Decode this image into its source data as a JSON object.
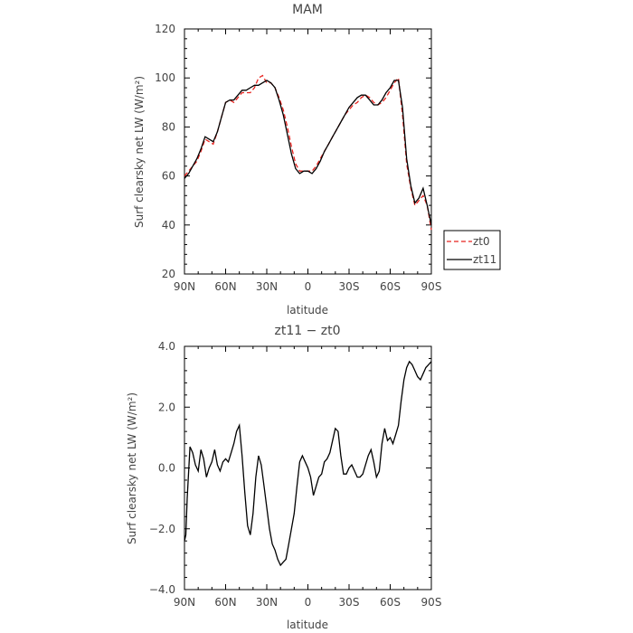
{
  "chart_data": [
    {
      "type": "line",
      "title": "MAM",
      "xlabel": "latitude",
      "ylabel": "Surf clearsky net LW (W/m²)",
      "xlim": [
        90,
        -90
      ],
      "ylim": [
        20,
        120
      ],
      "x_ticks": [
        {
          "value": 90,
          "label": "90N"
        },
        {
          "value": 60,
          "label": "60N"
        },
        {
          "value": 30,
          "label": "30N"
        },
        {
          "value": 0,
          "label": "0"
        },
        {
          "value": -30,
          "label": "30S"
        },
        {
          "value": -60,
          "label": "60S"
        },
        {
          "value": -90,
          "label": "90S"
        }
      ],
      "y_ticks": [
        {
          "value": 20,
          "label": "20"
        },
        {
          "value": 40,
          "label": "40"
        },
        {
          "value": 60,
          "label": "60"
        },
        {
          "value": 80,
          "label": "80"
        },
        {
          "value": 100,
          "label": "100"
        },
        {
          "value": 120,
          "label": "120"
        }
      ],
      "legend_position": "right",
      "series": [
        {
          "name": "zt0",
          "color": "#e8231f",
          "dash": "dashed",
          "x": [
            90,
            87,
            84,
            81,
            78,
            75,
            72,
            69,
            66,
            63,
            60,
            57,
            54,
            51,
            48,
            45,
            42,
            39,
            36,
            33,
            30,
            27,
            24,
            21,
            18,
            15,
            12,
            9,
            6,
            3,
            0,
            -3,
            -6,
            -9,
            -12,
            -15,
            -18,
            -21,
            -24,
            -27,
            -30,
            -33,
            -36,
            -39,
            -42,
            -45,
            -48,
            -51,
            -54,
            -57,
            -60,
            -63,
            -66,
            -69,
            -72,
            -75,
            -78,
            -81,
            -84,
            -87,
            -90
          ],
          "y": [
            60,
            62,
            64,
            66,
            70,
            75,
            74,
            73,
            78,
            84,
            90,
            91,
            90,
            92,
            94,
            94,
            94,
            96,
            100,
            101,
            98,
            98,
            96,
            92,
            87,
            80,
            72,
            65,
            62,
            62,
            62,
            62,
            64,
            67,
            70,
            73,
            76,
            79,
            82,
            85,
            87,
            89,
            90,
            92,
            93,
            92,
            90,
            89,
            90,
            92,
            95,
            98,
            100,
            85,
            65,
            55,
            48,
            50,
            52,
            48,
            38
          ]
        },
        {
          "name": "zt11",
          "color": "#000000",
          "dash": "solid",
          "x": [
            90,
            87,
            84,
            81,
            78,
            75,
            72,
            69,
            66,
            63,
            60,
            57,
            54,
            51,
            48,
            45,
            42,
            39,
            36,
            33,
            30,
            27,
            24,
            21,
            18,
            15,
            12,
            9,
            6,
            3,
            0,
            -3,
            -6,
            -9,
            -12,
            -15,
            -18,
            -21,
            -24,
            -27,
            -30,
            -33,
            -36,
            -39,
            -42,
            -45,
            -48,
            -51,
            -54,
            -57,
            -60,
            -63,
            -66,
            -69,
            -72,
            -75,
            -78,
            -81,
            -84,
            -87,
            -90
          ],
          "y": [
            59,
            61,
            64,
            67,
            71,
            76,
            75,
            74,
            78,
            84,
            90,
            91,
            91,
            93,
            95,
            95,
            96,
            97,
            97,
            98,
            99,
            98,
            96,
            91,
            85,
            77,
            69,
            63,
            61,
            62,
            62,
            61,
            63,
            66,
            70,
            73,
            76,
            79,
            82,
            85,
            88,
            90,
            92,
            93,
            93,
            91,
            89,
            89,
            91,
            94,
            96,
            99,
            99,
            88,
            67,
            56,
            49,
            51,
            55,
            48,
            40
          ]
        }
      ]
    },
    {
      "type": "line",
      "title": "zt11 − zt0",
      "xlabel": "latitude",
      "ylabel": "Surf clearsky net LW (W/m²)",
      "xlim": [
        90,
        -90
      ],
      "ylim": [
        -4,
        4
      ],
      "x_ticks": [
        {
          "value": 90,
          "label": "90N"
        },
        {
          "value": 60,
          "label": "60N"
        },
        {
          "value": 30,
          "label": "30N"
        },
        {
          "value": 0,
          "label": "0"
        },
        {
          "value": -30,
          "label": "30S"
        },
        {
          "value": -60,
          "label": "60S"
        },
        {
          "value": -90,
          "label": "90S"
        }
      ],
      "y_ticks": [
        {
          "value": -4,
          "label": "−4.0"
        },
        {
          "value": -2,
          "label": "−2.0"
        },
        {
          "value": 0,
          "label": "0.0"
        },
        {
          "value": 2,
          "label": "2.0"
        },
        {
          "value": 4,
          "label": "4.0"
        }
      ],
      "series": [
        {
          "name": "",
          "color": "#000000",
          "dash": "solid",
          "x": [
            90,
            89,
            88,
            86,
            84,
            82,
            80,
            78,
            76,
            74,
            72,
            70,
            68,
            66,
            64,
            62,
            60,
            58,
            56,
            54,
            52,
            50,
            48,
            46,
            44,
            42,
            40,
            38,
            36,
            34,
            32,
            30,
            28,
            26,
            24,
            22,
            20,
            18,
            16,
            14,
            12,
            10,
            8,
            6,
            4,
            2,
            0,
            -2,
            -4,
            -6,
            -8,
            -10,
            -12,
            -14,
            -16,
            -18,
            -20,
            -22,
            -24,
            -26,
            -28,
            -30,
            -32,
            -34,
            -36,
            -38,
            -40,
            -42,
            -44,
            -46,
            -48,
            -50,
            -52,
            -54,
            -56,
            -58,
            -60,
            -62,
            -64,
            -66,
            -68,
            -70,
            -72,
            -74,
            -76,
            -78,
            -80,
            -82,
            -84,
            -86,
            -88,
            -90
          ],
          "y": [
            -2.4,
            -2.2,
            -1.0,
            0.7,
            0.5,
            0.1,
            -0.1,
            0.6,
            0.3,
            -0.3,
            0.0,
            0.2,
            0.6,
            0.1,
            -0.1,
            0.2,
            0.3,
            0.2,
            0.5,
            0.8,
            1.2,
            1.4,
            0.4,
            -0.8,
            -1.9,
            -2.2,
            -1.5,
            -0.3,
            0.4,
            0.1,
            -0.6,
            -1.3,
            -2.0,
            -2.5,
            -2.7,
            -3.0,
            -3.2,
            -3.1,
            -3.0,
            -2.5,
            -2.0,
            -1.5,
            -0.6,
            0.2,
            0.4,
            0.2,
            0.0,
            -0.3,
            -0.9,
            -0.6,
            -0.3,
            -0.2,
            0.2,
            0.3,
            0.5,
            0.9,
            1.3,
            1.2,
            0.4,
            -0.2,
            -0.2,
            0.0,
            0.1,
            -0.1,
            -0.3,
            -0.3,
            -0.2,
            0.1,
            0.4,
            0.6,
            0.2,
            -0.3,
            -0.1,
            0.8,
            1.3,
            0.9,
            1.0,
            0.8,
            1.1,
            1.4,
            2.2,
            2.9,
            3.3,
            3.5,
            3.4,
            3.2,
            3.0,
            2.9,
            3.1,
            3.3,
            3.4,
            3.5
          ]
        }
      ]
    }
  ]
}
